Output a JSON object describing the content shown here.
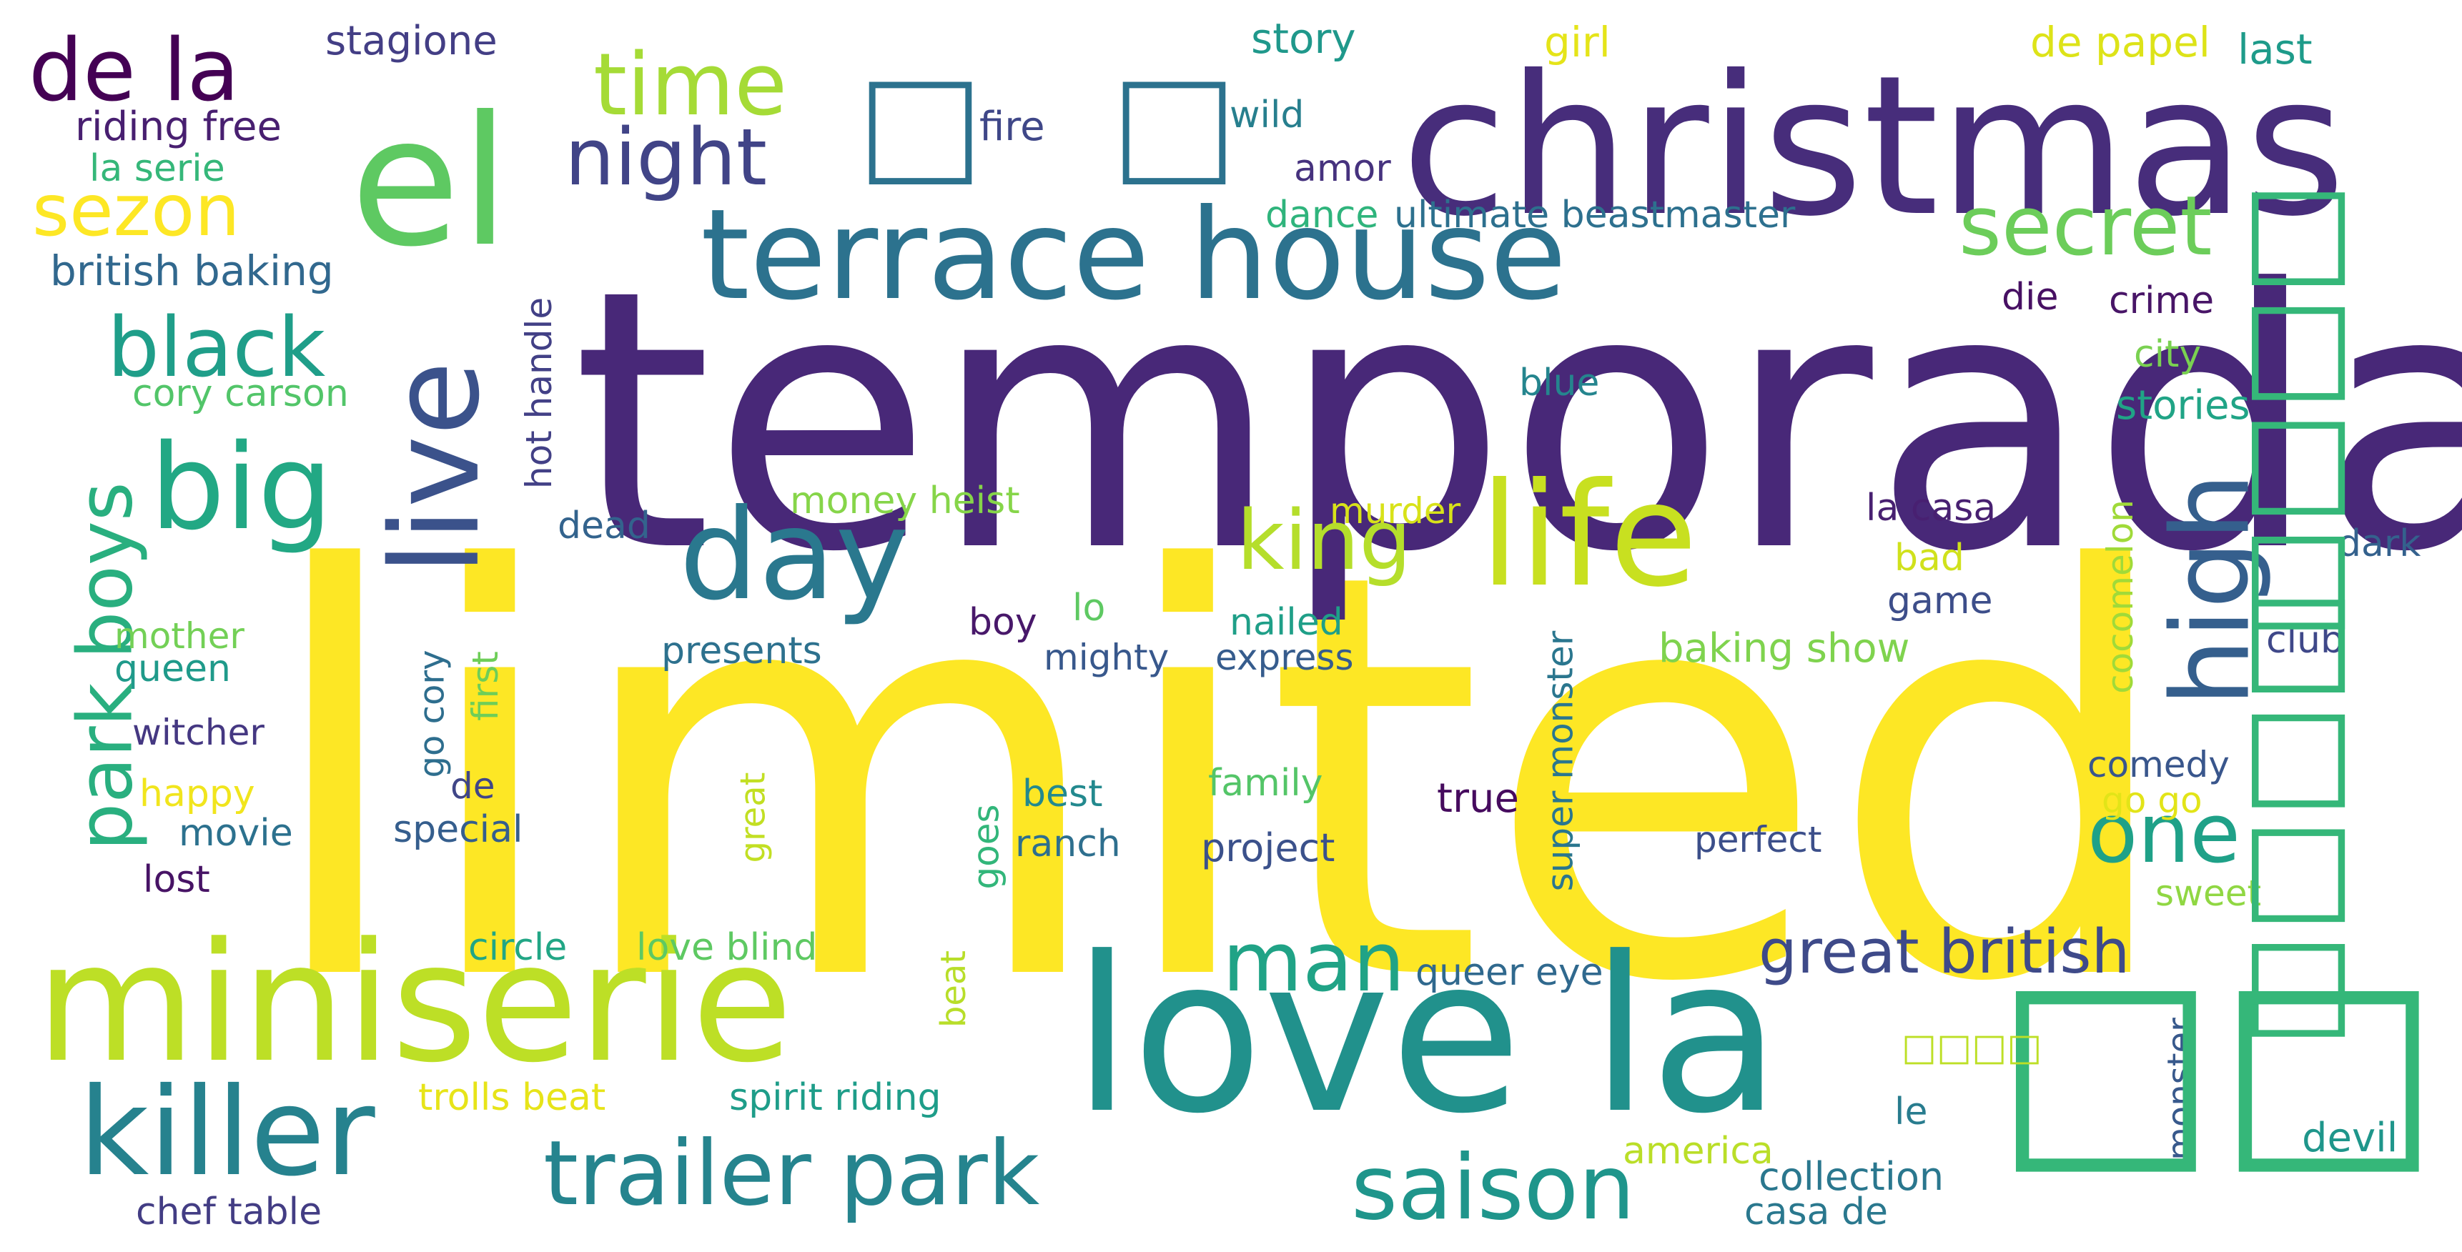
{
  "words": [
    {
      "text": "limited",
      "color": "#fde725"
    },
    {
      "text": "temporada",
      "color": "#482878"
    },
    {
      "text": "christmas",
      "color": "#472d7b"
    },
    {
      "text": "love la",
      "color": "#21918c"
    },
    {
      "text": "miniserie",
      "color": "#bddf26"
    },
    {
      "text": "el",
      "color": "#5ec962"
    },
    {
      "text": "terrace house",
      "color": "#2c728e"
    },
    {
      "text": "life",
      "color": "#c8e020"
    },
    {
      "text": "live",
      "color": "#3b528b"
    },
    {
      "text": "day",
      "color": "#2a788e"
    },
    {
      "text": "big",
      "color": "#22a884"
    },
    {
      "text": "killer",
      "color": "#26828e"
    },
    {
      "text": "trailer park",
      "color": "#25848e"
    },
    {
      "text": "high",
      "color": "#355f8d"
    },
    {
      "text": "de la",
      "color": "#440154"
    },
    {
      "text": "night",
      "color": "#414487"
    },
    {
      "text": "time",
      "color": "#a5db36"
    },
    {
      "text": "sezon",
      "color": "#fde725"
    },
    {
      "text": "black",
      "color": "#1f9e89"
    },
    {
      "text": "park boys",
      "color": "#29af7f"
    },
    {
      "text": "secret",
      "color": "#6ccd5a"
    },
    {
      "text": "king",
      "color": "#b5de2b"
    },
    {
      "text": "man",
      "color": "#20a386"
    },
    {
      "text": "one",
      "color": "#1fa188"
    },
    {
      "text": "saison",
      "color": "#1f958b"
    },
    {
      "text": "great british",
      "color": "#3e4a89"
    },
    {
      "text": "story",
      "color": "#1f988b"
    },
    {
      "text": "girl",
      "color": "#e5e419"
    },
    {
      "text": "de papel",
      "color": "#dde318"
    },
    {
      "text": "last",
      "color": "#1e9b8a"
    },
    {
      "text": "stagione",
      "color": "#433e85"
    },
    {
      "text": "riding free",
      "color": "#481f70"
    },
    {
      "text": "la serie",
      "color": "#35b779"
    },
    {
      "text": "fire",
      "color": "#3f4788"
    },
    {
      "text": "wild",
      "color": "#277f8e"
    },
    {
      "text": "amor",
      "color": "#46327e"
    },
    {
      "text": "dance",
      "color": "#2fb47c"
    },
    {
      "text": "ultimate beastmaster",
      "color": "#2d708e"
    },
    {
      "text": "british baking",
      "color": "#31688e"
    },
    {
      "text": "hot handle",
      "color": "#424086"
    },
    {
      "text": "cory carson",
      "color": "#52c569"
    },
    {
      "text": "die",
      "color": "#471063"
    },
    {
      "text": "crime",
      "color": "#481567"
    },
    {
      "text": "city",
      "color": "#7ad151"
    },
    {
      "text": "blue",
      "color": "#25858e"
    },
    {
      "text": "stories",
      "color": "#20a486"
    },
    {
      "text": "money heist",
      "color": "#86d549"
    },
    {
      "text": "murder",
      "color": "#d8e219"
    },
    {
      "text": "la casa",
      "color": "#482071"
    },
    {
      "text": "cocomelon",
      "color": "#a0da39"
    },
    {
      "text": "dead",
      "color": "#33638d"
    },
    {
      "text": "dark",
      "color": "#34618d"
    },
    {
      "text": "bad",
      "color": "#d0e11c"
    },
    {
      "text": "game",
      "color": "#3d4e8a"
    },
    {
      "text": "lo",
      "color": "#5ec962"
    },
    {
      "text": "mother",
      "color": "#73d056"
    },
    {
      "text": "boy",
      "color": "#48186a"
    },
    {
      "text": "nailed",
      "color": "#1f9f88"
    },
    {
      "text": "presents",
      "color": "#2d718e"
    },
    {
      "text": "mighty",
      "color": "#38588c"
    },
    {
      "text": "express",
      "color": "#365c8d"
    },
    {
      "text": "baking show",
      "color": "#7fd34e"
    },
    {
      "text": "club",
      "color": "#3f4889"
    },
    {
      "text": "queen",
      "color": "#1f9a8a"
    },
    {
      "text": "go cory",
      "color": "#2e6e8e"
    },
    {
      "text": "first",
      "color": "#6ece58"
    },
    {
      "text": "super monster",
      "color": "#2a768e"
    },
    {
      "text": "witcher",
      "color": "#453882"
    },
    {
      "text": "happy",
      "color": "#f1e51d"
    },
    {
      "text": "de",
      "color": "#404688"
    },
    {
      "text": "great",
      "color": "#c2df23"
    },
    {
      "text": "best",
      "color": "#23898e"
    },
    {
      "text": "family",
      "color": "#54c568"
    },
    {
      "text": "true",
      "color": "#460b5e"
    },
    {
      "text": "comedy",
      "color": "#39568c"
    },
    {
      "text": "go go",
      "color": "#e2e418"
    },
    {
      "text": "movie",
      "color": "#2c718e"
    },
    {
      "text": "special",
      "color": "#355e8d"
    },
    {
      "text": "ranch",
      "color": "#2e6f8e"
    },
    {
      "text": "project",
      "color": "#3b518b"
    },
    {
      "text": "perfect",
      "color": "#3c4f8a"
    },
    {
      "text": "lost",
      "color": "#471365"
    },
    {
      "text": "goes",
      "color": "#32b67a"
    },
    {
      "text": "sweet",
      "color": "#90d743"
    },
    {
      "text": "circle",
      "color": "#21a685"
    },
    {
      "text": "love blind",
      "color": "#5ec962"
    },
    {
      "text": "queer eye",
      "color": "#30698e"
    },
    {
      "text": "beat",
      "color": "#b8de29"
    },
    {
      "text": "trolls beat",
      "color": "#e7e419"
    },
    {
      "text": "spirit riding",
      "color": "#1e9d89"
    },
    {
      "text": "monster",
      "color": "#38598c"
    },
    {
      "text": "le",
      "color": "#287c8e"
    },
    {
      "text": "america",
      "color": "#bade28"
    },
    {
      "text": "devil",
      "color": "#1f968b"
    },
    {
      "text": "collection",
      "color": "#2a778e"
    },
    {
      "text": "chef table",
      "color": "#433d84"
    },
    {
      "text": "casa de",
      "color": "#2a788e"
    }
  ],
  "boxes": [
    {
      "text": "□",
      "color": "#2c728e"
    },
    {
      "text": "□",
      "color": "#2c728e"
    },
    {
      "text": "□□□□",
      "color": "#35b779"
    },
    {
      "text": "□□□□",
      "color": "#35b779"
    },
    {
      "text": "□□",
      "color": "#35b779"
    },
    {
      "text": "□□□□",
      "color": "#bddf26"
    }
  ]
}
